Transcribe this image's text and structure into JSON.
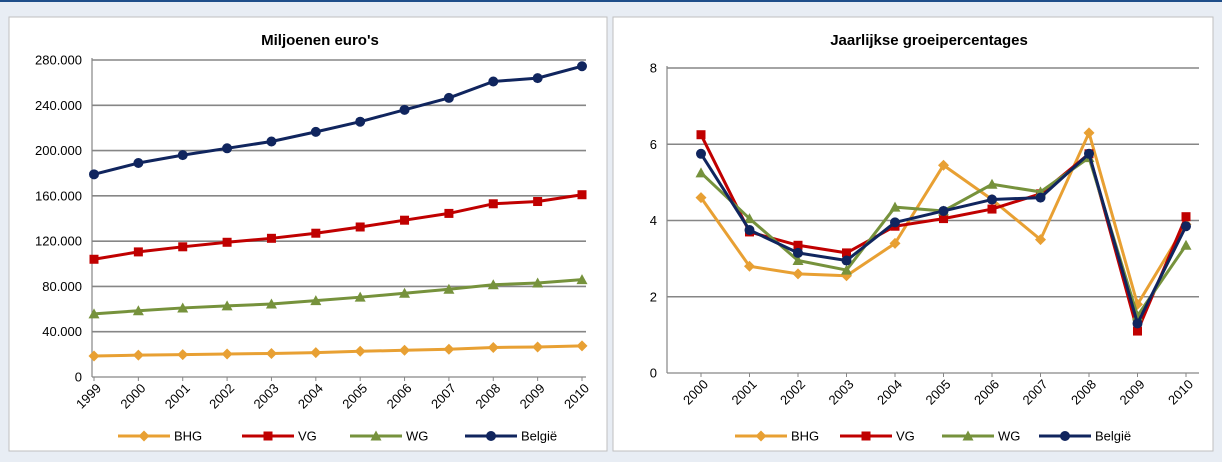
{
  "chart_data": [
    {
      "type": "line",
      "title": "Miljoenen euro's",
      "x": [
        "1999",
        "2000",
        "2001",
        "2002",
        "2003",
        "2004",
        "2005",
        "2006",
        "2007",
        "2008",
        "2009",
        "2010"
      ],
      "ylim": [
        0,
        280000
      ],
      "yticks": [
        "0",
        "40.000",
        "80.000",
        "120.000",
        "160.000",
        "200.000",
        "240.000",
        "280.000"
      ],
      "ytick_values": [
        0,
        40000,
        80000,
        120000,
        160000,
        200000,
        240000,
        280000
      ],
      "grid": true,
      "legend": "bottom",
      "series": [
        {
          "name": "BHG",
          "color": "#e8a033",
          "marker": "diamond",
          "values": [
            18500,
            19300,
            19800,
            20300,
            20800,
            21500,
            22700,
            23600,
            24500,
            26100,
            26500,
            27500
          ]
        },
        {
          "name": "VG",
          "color": "#c00000",
          "marker": "square",
          "values": [
            104000,
            110500,
            115000,
            119000,
            122500,
            127000,
            132500,
            138500,
            144500,
            153000,
            155000,
            161000
          ]
        },
        {
          "name": "WG",
          "color": "#76923c",
          "marker": "triangle",
          "values": [
            55800,
            58500,
            61000,
            62800,
            64500,
            67500,
            70500,
            74000,
            77500,
            81500,
            83000,
            86000
          ]
        },
        {
          "name": "België",
          "color": "#10255e",
          "marker": "circle",
          "values": [
            179000,
            189000,
            196000,
            202000,
            208000,
            216500,
            225500,
            236000,
            246500,
            261000,
            264000,
            274500
          ]
        }
      ]
    },
    {
      "type": "line",
      "title": "Jaarlijkse groeipercentages",
      "x": [
        "2000",
        "2001",
        "2002",
        "2003",
        "2004",
        "2005",
        "2006",
        "2007",
        "2008",
        "2009",
        "2010"
      ],
      "ylim": [
        0,
        8
      ],
      "yticks": [
        "0",
        "2",
        "4",
        "6",
        "8"
      ],
      "ytick_values": [
        0,
        2,
        4,
        6,
        8
      ],
      "grid": true,
      "legend": "bottom",
      "series": [
        {
          "name": "BHG",
          "color": "#e8a033",
          "marker": "diamond",
          "values": [
            4.6,
            2.8,
            2.6,
            2.55,
            3.4,
            5.45,
            4.55,
            3.5,
            6.3,
            1.8,
            3.9
          ]
        },
        {
          "name": "VG",
          "color": "#c00000",
          "marker": "square",
          "values": [
            6.25,
            3.7,
            3.35,
            3.15,
            3.85,
            4.05,
            4.3,
            4.7,
            5.75,
            1.1,
            4.1
          ]
        },
        {
          "name": "WG",
          "color": "#76923c",
          "marker": "triangle",
          "values": [
            5.25,
            4.05,
            2.95,
            2.7,
            4.35,
            4.25,
            4.95,
            4.75,
            5.65,
            1.5,
            3.35
          ]
        },
        {
          "name": "België",
          "color": "#10255e",
          "marker": "circle",
          "values": [
            5.75,
            3.75,
            3.15,
            2.95,
            3.95,
            4.25,
            4.55,
            4.6,
            5.75,
            1.3,
            3.85
          ]
        }
      ]
    }
  ]
}
